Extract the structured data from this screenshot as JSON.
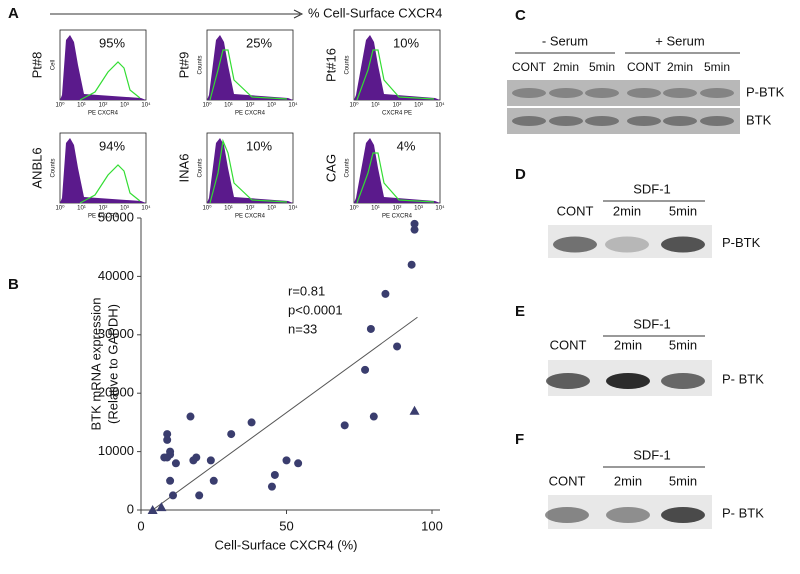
{
  "panel_a": {
    "label": "A",
    "axis_title": "% Cell-Surface CXCR4",
    "x_ticks": [
      "10⁰",
      "10¹",
      "10²",
      "10³",
      "10⁴"
    ],
    "plots": [
      {
        "sample": "Pt#8",
        "percent": "95%",
        "y_label": "Cell",
        "x_label": "PE CXCR4"
      },
      {
        "sample": "Pt#9",
        "percent": "25%",
        "y_label": "Counts",
        "x_label": "PE CXCR4"
      },
      {
        "sample": "Pt#16",
        "percent": "10%",
        "y_label": "Counts",
        "x_label": "CXCR4 PE"
      },
      {
        "sample": "ANBL6",
        "percent": "94%",
        "y_label": "Counts",
        "x_label": "PE CXCR4"
      },
      {
        "sample": "INA6",
        "percent": "10%",
        "y_label": "Counts",
        "x_label": "PE CXCR4"
      },
      {
        "sample": "CAG",
        "percent": "4%",
        "y_label": "Counts",
        "x_label": "PE CXCR4"
      }
    ]
  },
  "panel_b": {
    "label": "B"
  },
  "chart_data": {
    "type": "scatter",
    "y_label": [
      "BTK mRNA expression",
      "(Relative to GAPDH)"
    ],
    "x_label": "Cell-Surface CXCR4 (%)",
    "annotations": [
      "r=0.81",
      "p<0.0001",
      "n=33"
    ],
    "xlim": [
      0,
      100
    ],
    "xticks": [
      0,
      50,
      100
    ],
    "ylim": [
      0,
      50000
    ],
    "yticks": [
      0,
      10000,
      20000,
      30000,
      40000,
      50000
    ],
    "series": [
      {
        "marker": "circle",
        "color": "#3a3d6e",
        "x": [
          8,
          9,
          9,
          9,
          10,
          10,
          11,
          12,
          17,
          18,
          19,
          20,
          24,
          25,
          31,
          38,
          45,
          46,
          50,
          54,
          70,
          77,
          79,
          80,
          84,
          88,
          93,
          94,
          94,
          10
        ],
        "values": [
          9000,
          9000,
          13000,
          12000,
          9500,
          5000,
          2500,
          8000,
          16000,
          8500,
          9000,
          2500,
          8500,
          5000,
          13000,
          15000,
          4000,
          6000,
          8500,
          8000,
          14500,
          24000,
          31000,
          16000,
          37000,
          28000,
          42000,
          48000,
          49000,
          10000
        ]
      },
      {
        "marker": "triangle",
        "color": "#3a3d6e",
        "x": [
          4,
          7,
          94
        ],
        "values": [
          0,
          500,
          17000
        ]
      }
    ],
    "trendline": {
      "x": [
        4,
        95
      ],
      "y": [
        0,
        33000
      ]
    }
  },
  "panel_c": {
    "label": "C",
    "groups": [
      "- Serum",
      "+ Serum"
    ],
    "lanes": [
      "CONT",
      "2min",
      "5min",
      "CONT",
      "2min",
      "5min"
    ],
    "rows": [
      "P-BTK",
      "BTK"
    ]
  },
  "panel_d": {
    "label": "D",
    "group": "SDF-1",
    "lanes": [
      "CONT",
      "2min",
      "5min"
    ],
    "row": "P-BTK"
  },
  "panel_e": {
    "label": "E",
    "group": "SDF-1",
    "lanes": [
      "CONT",
      "2min",
      "5min"
    ],
    "row": "P- BTK"
  },
  "panel_f": {
    "label": "F",
    "group": "SDF-1",
    "lanes": [
      "CONT",
      "2min",
      "5min"
    ],
    "row": "P- BTK"
  }
}
